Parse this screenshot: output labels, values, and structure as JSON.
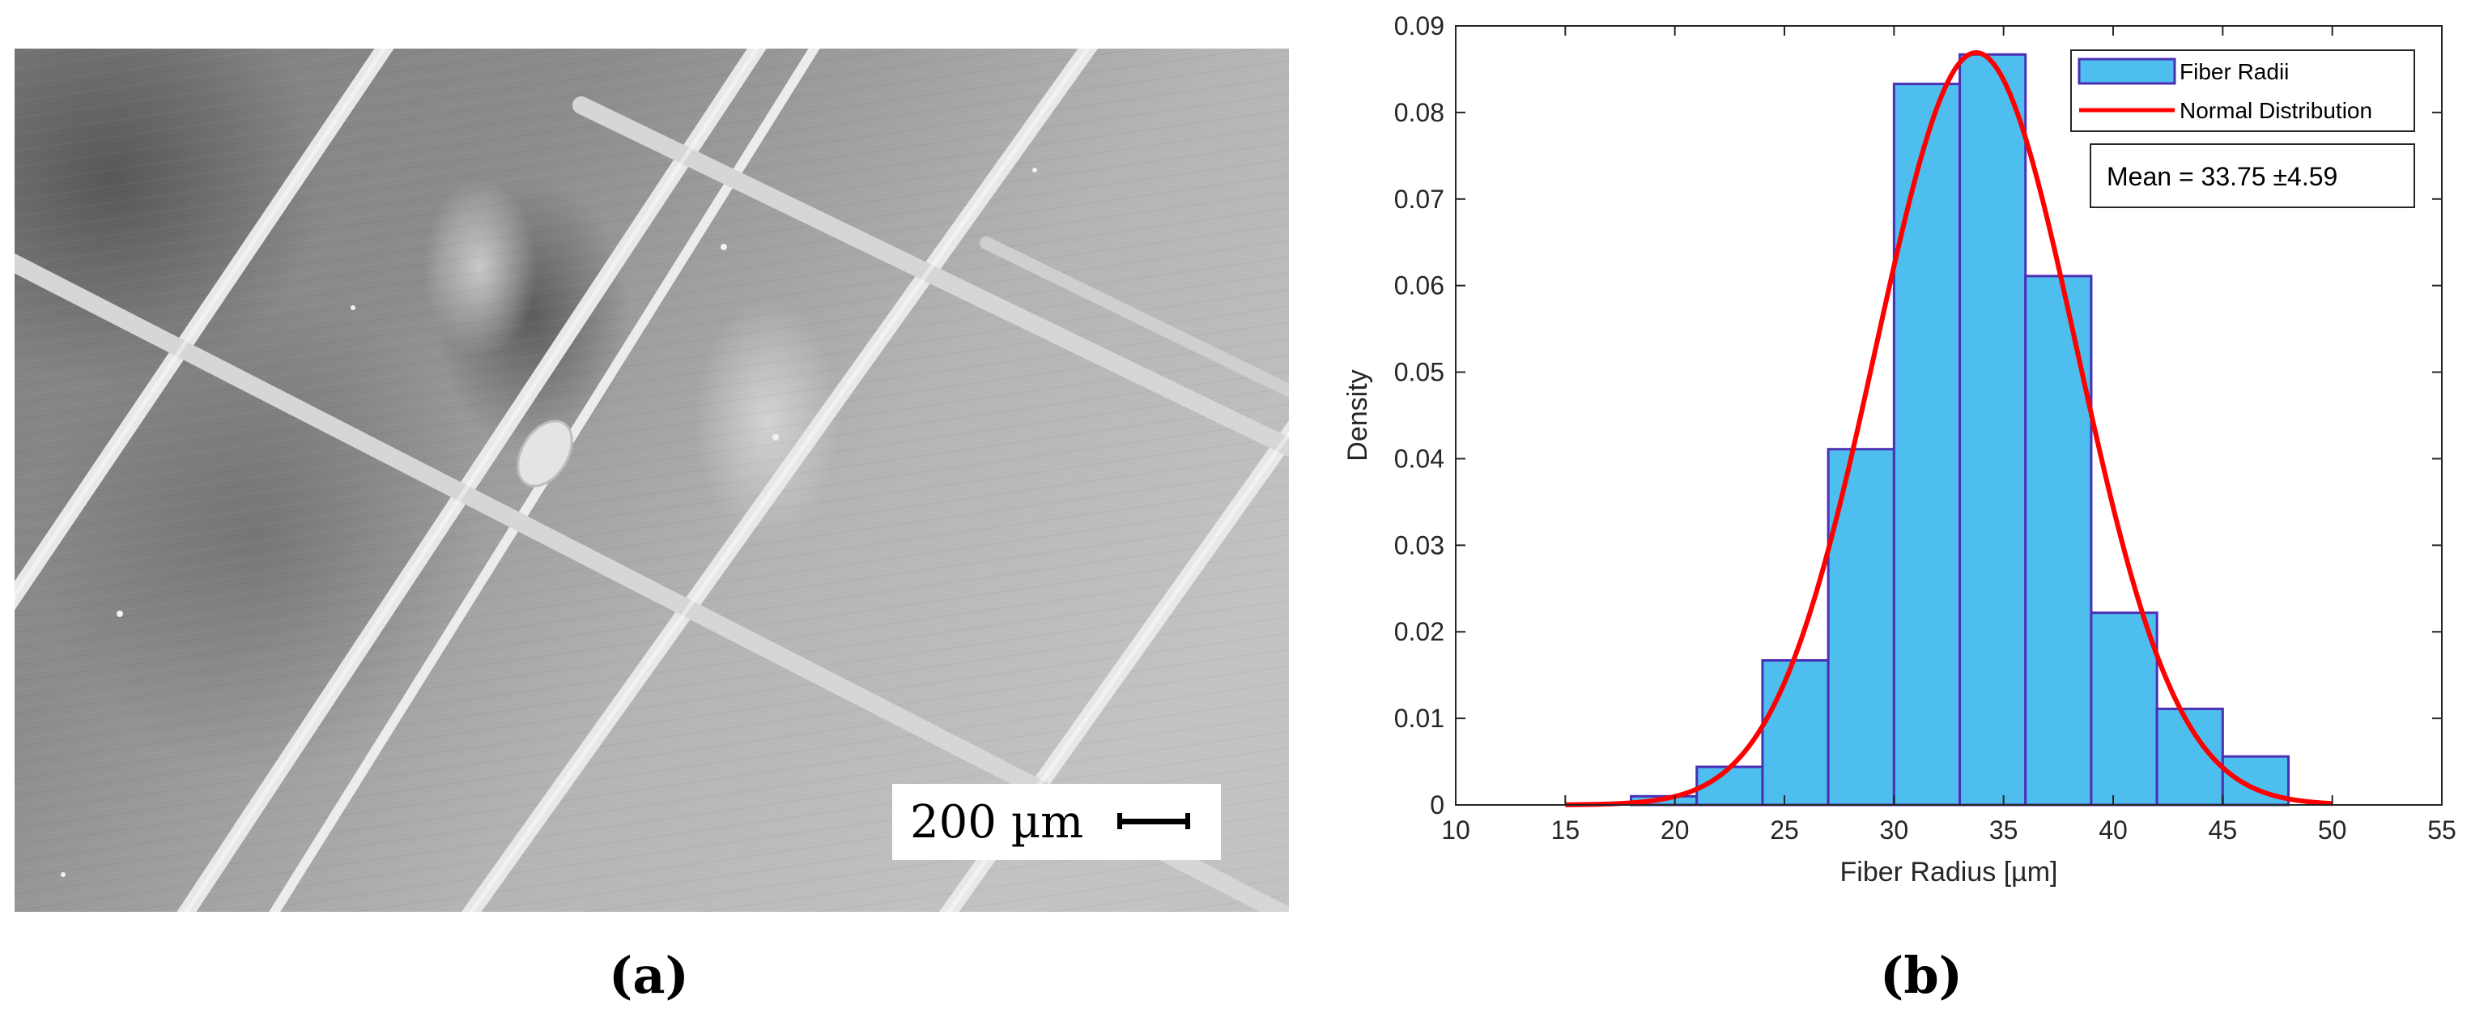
{
  "panels": {
    "a": {
      "label": "(a)",
      "scale_bar_label": "200 µm"
    },
    "b": {
      "label": "(b)"
    }
  },
  "chart_data": {
    "type": "bar",
    "title": "",
    "xlabel": "Fiber Radius [µm]",
    "ylabel": "Density",
    "xlim": [
      10,
      55
    ],
    "ylim": [
      0,
      0.09
    ],
    "xticks": [
      10,
      15,
      20,
      25,
      30,
      35,
      40,
      45,
      50,
      55
    ],
    "yticks": [
      0,
      0.01,
      0.02,
      0.03,
      0.04,
      0.05,
      0.06,
      0.07,
      0.08,
      0.09
    ],
    "ytick_labels": [
      "0",
      "0.01",
      "0.02",
      "0.03",
      "0.04",
      "0.05",
      "0.06",
      "0.07",
      "0.08",
      "0.09"
    ],
    "grid": false,
    "legend_position": "top-right",
    "series": [
      {
        "name": "Fiber Radii",
        "kind": "histogram",
        "color": "#4DBEEE",
        "edge_color": "#4B2FB5",
        "bin_edges": [
          18,
          21,
          24,
          27,
          30,
          33,
          36,
          39,
          42,
          45,
          48
        ],
        "values": [
          0.001,
          0.0044,
          0.0167,
          0.0411,
          0.0833,
          0.0867,
          0.0611,
          0.0222,
          0.0111,
          0.0056
        ]
      },
      {
        "name": "Normal Distribution",
        "kind": "line",
        "color": "#FF0000",
        "mean": 33.75,
        "std": 4.59,
        "x_range": [
          15,
          50
        ]
      }
    ],
    "annotation": "Mean = 33.75 ±4.59"
  }
}
